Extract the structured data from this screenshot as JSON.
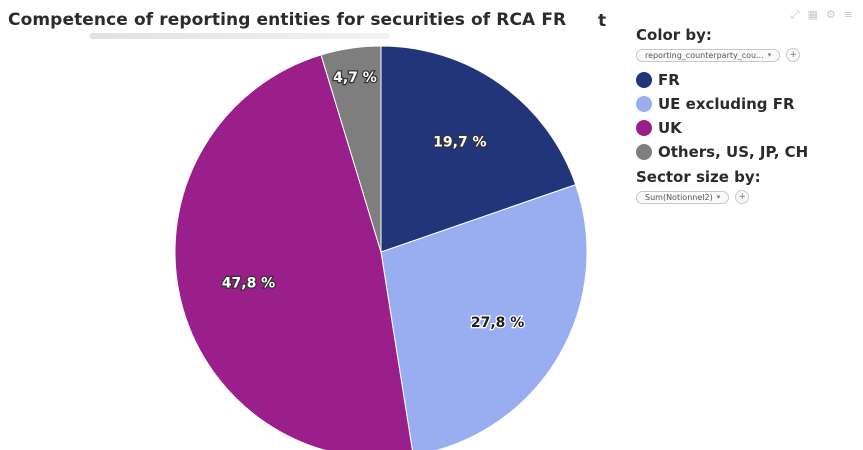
{
  "title": "Competence of reporting entities for securities of RCA FR",
  "title_trail": "t",
  "panel": {
    "color_by_label": "Color by:",
    "color_by_value": "reporting_counterparty_cou...",
    "sector_size_label": "Sector size by:",
    "sector_size_value": "Sum(Notionnel2)"
  },
  "chart_data": {
    "type": "pie",
    "title": "Competence of reporting entities for securities of RCA FR",
    "slices": [
      {
        "name": "FR",
        "value": 19.7,
        "label": "19,7 %",
        "color": "#22347a"
      },
      {
        "name": "UE excluding FR",
        "value": 27.8,
        "label": "27,8 %",
        "color": "#98aef0"
      },
      {
        "name": "UK",
        "value": 47.8,
        "label": "47,8 %",
        "color": "#9a1f8a"
      },
      {
        "name": "Others, US, JP, CH",
        "value": 4.7,
        "label": "4,7 %",
        "color": "#7e7e7e"
      }
    ],
    "start_angle_deg": 0,
    "direction": "clockwise",
    "legend_position": "right",
    "label_text_color": "#ffffff",
    "label_text_color_light_slice": "#1e1e1e"
  }
}
